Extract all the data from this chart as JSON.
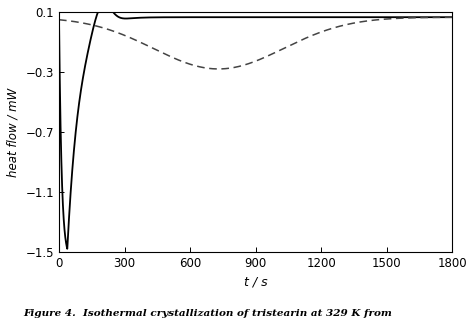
{
  "title": "",
  "xlabel": "t / s",
  "ylabel": "heat flow / mW",
  "xlim": [
    0,
    1800
  ],
  "ylim": [
    -1.5,
    0.1
  ],
  "xticks": [
    0,
    300,
    600,
    900,
    1200,
    1500,
    1800
  ],
  "yticks": [
    0.1,
    -0.3,
    -0.7,
    -1.1,
    -1.5
  ],
  "background_color": "#ffffff",
  "solid_color": "#000000",
  "dashed_color": "#444444",
  "caption": "Figure 4.  Isothermal crystallization of tristearin at 329 K from",
  "solid_params": {
    "base": 0.065,
    "dip_amp": -1.545,
    "dip_t_peak": 38,
    "dip_tau_rise": 12,
    "dip_tau_fall": 55,
    "bump_amp": 0.17,
    "bump_t": 195,
    "bump_sigma": 55,
    "recover_amp": 0.0,
    "recover_tau": 400
  },
  "dashed_params": {
    "base": 0.065,
    "dip_amp": -0.345,
    "dip_t_peak": 730,
    "dip_sigma": 420
  }
}
